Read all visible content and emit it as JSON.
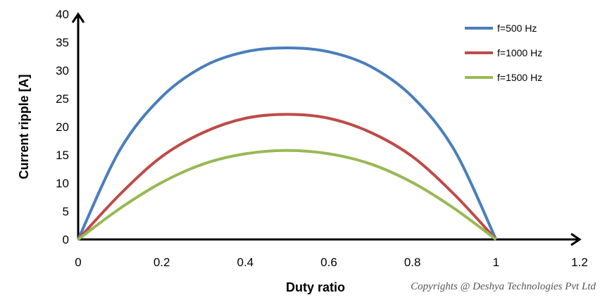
{
  "chart_data": {
    "type": "line",
    "title": "",
    "xlabel": "Duty ratio",
    "ylabel": "Current ripple [A]",
    "xlim": [
      0,
      1.2
    ],
    "ylim": [
      0,
      40
    ],
    "x_ticks": [
      "0",
      "0.2",
      "0.4",
      "0.6",
      "0.8",
      "1",
      "1.2"
    ],
    "y_ticks": [
      "0",
      "5",
      "10",
      "15",
      "20",
      "25",
      "30",
      "35",
      "40"
    ],
    "grid": false,
    "legend_position": "top-right",
    "x": [
      0,
      0.1,
      0.2,
      0.3,
      0.4,
      0.5,
      0.6,
      0.7,
      0.8,
      0.9,
      1.0
    ],
    "series": [
      {
        "name": "f=500 Hz",
        "color": "#4a7ebb",
        "values": [
          0,
          15.9,
          25.3,
          30.7,
          33.3,
          34.0,
          33.3,
          30.7,
          25.3,
          15.9,
          0
        ]
      },
      {
        "name": "f=1000 Hz",
        "color": "#be4b48",
        "values": [
          0,
          8.0,
          14.7,
          19.0,
          21.5,
          22.2,
          21.5,
          19.0,
          14.7,
          8.0,
          0
        ]
      },
      {
        "name": "f=1500 Hz",
        "color": "#98b954",
        "values": [
          0,
          5.5,
          10.1,
          13.4,
          15.2,
          15.8,
          15.2,
          13.4,
          10.1,
          5.5,
          0
        ]
      }
    ]
  },
  "watermark": "Copyrights @ Deshya Technologies Pvt Ltd"
}
